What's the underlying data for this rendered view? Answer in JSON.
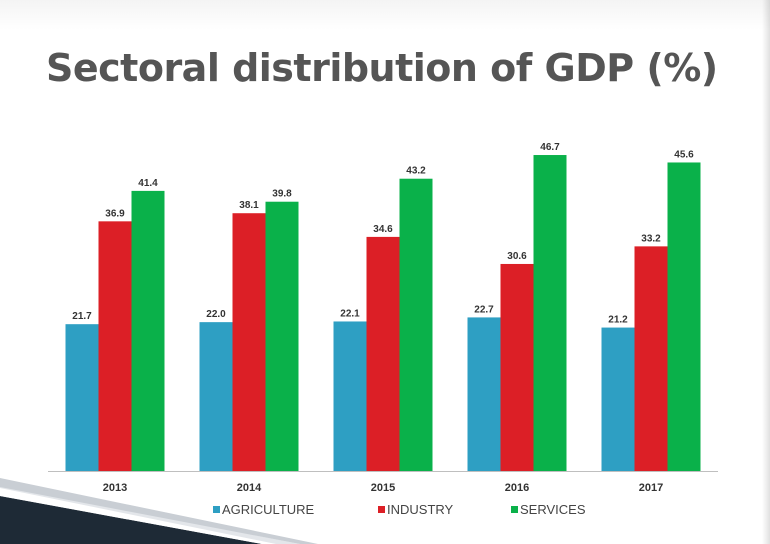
{
  "slide": {
    "title": "Sectoral distribution of GDP (%)"
  },
  "chart_data": {
    "type": "bar",
    "title": "",
    "xlabel": "",
    "ylabel": "",
    "categories": [
      "2013",
      "2014",
      "2015",
      "2016",
      "2017"
    ],
    "series": [
      {
        "name": "AGRICULTURE",
        "color": "#2e9fc3",
        "values": [
          21.7,
          22.0,
          22.1,
          22.7,
          21.2
        ]
      },
      {
        "name": "INDUSTRY",
        "color": "#dc1f26",
        "values": [
          36.9,
          38.1,
          34.6,
          30.6,
          33.2
        ]
      },
      {
        "name": "SERVICES",
        "color": "#0ab14a",
        "values": [
          41.4,
          39.8,
          43.2,
          46.7,
          45.6
        ]
      }
    ],
    "ylim": [
      0,
      47
    ],
    "grid": false,
    "legend_position": "bottom",
    "value_labels": true
  }
}
